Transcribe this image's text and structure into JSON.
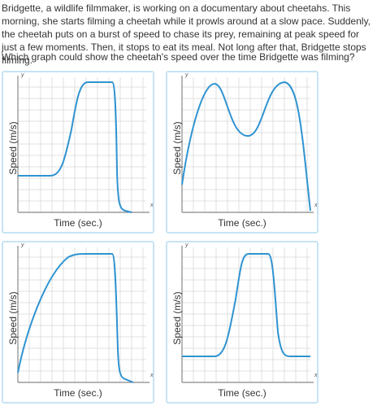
{
  "passage": "Bridgette, a wildlife filmmaker, is working on a documentary about cheetahs. This morning, she starts filming a cheetah while it prowls around at a slow pace. Suddenly, the cheetah puts on a burst of speed to chase its prey, remaining at peak speed for just a few moments. Then, it stops to eat its meal. Not long after that, Bridgette stops filming.",
  "question": "Which graph could show the cheetah's speed over the time Bridgette was filming?",
  "colors": {
    "card_border": "#c7e4f3",
    "curve": "#2f93d1",
    "grid": "#d8d8d8",
    "axis": "#888888"
  },
  "graphs": [
    {
      "ylabel": "Speed (m/s)",
      "xlabel": "Time (sec.)",
      "x_axis_letter": "x",
      "y_axis_letter": "y"
    },
    {
      "ylabel": "Speed (m/s)",
      "xlabel": "Time (sec.)",
      "x_axis_letter": "x",
      "y_axis_letter": "y"
    },
    {
      "ylabel": "Speed (m/s)",
      "xlabel": "Time (sec.)",
      "x_axis_letter": "x",
      "y_axis_letter": "y"
    },
    {
      "ylabel": "Speed (m/s)",
      "xlabel": "Time (sec.)",
      "x_axis_letter": "x",
      "y_axis_letter": "y"
    }
  ]
}
